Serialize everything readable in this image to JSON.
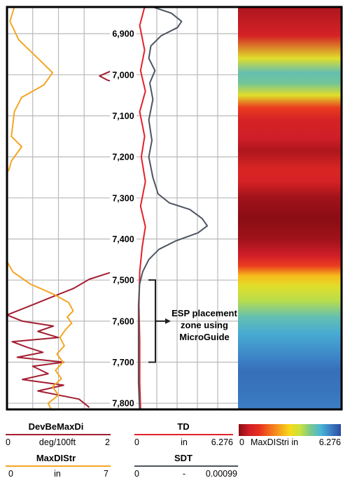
{
  "chart_data": {
    "type": "line",
    "depth_axis": {
      "ticks": [
        "6,900",
        "7,000",
        "7,100",
        "7,200",
        "7,300",
        "7,400",
        "7,500",
        "7,600",
        "7,700",
        "7,800"
      ],
      "tick_values": [
        6900,
        7000,
        7100,
        7200,
        7300,
        7400,
        7500,
        7600,
        7700,
        7800
      ],
      "range": [
        6835,
        7815
      ]
    },
    "annotation": {
      "lines": [
        "ESP placement",
        "zone using",
        "MicroGuide"
      ],
      "from": 7500,
      "to": 7700
    },
    "tracks": {
      "left": {
        "series": [
          {
            "name": "DevBeMaxDi",
            "unit": "deg/100ft",
            "min": "0",
            "max": "2",
            "lim": [
              0,
              2
            ],
            "color": "#a31e32",
            "points": [
              [
                2.0,
                6992
              ],
              [
                1.8,
                7003
              ],
              [
                1.95,
                7013
              ],
              [
                2.0,
                7015
              ]
            ],
            "points2": [
              [
                2.0,
                7482
              ],
              [
                1.6,
                7498
              ],
              [
                1.3,
                7520
              ],
              [
                0.9,
                7540
              ],
              [
                0.5,
                7560
              ],
              [
                0.0,
                7585
              ],
              [
                0.3,
                7600
              ],
              [
                0.9,
                7612
              ],
              [
                0.6,
                7625
              ],
              [
                1.0,
                7640
              ],
              [
                0.1,
                7650
              ],
              [
                0.4,
                7664
              ],
              [
                0.7,
                7676
              ],
              [
                0.2,
                7688
              ],
              [
                1.1,
                7700
              ],
              [
                0.5,
                7710
              ],
              [
                0.8,
                7728
              ],
              [
                0.3,
                7742
              ],
              [
                1.1,
                7756
              ],
              [
                0.6,
                7770
              ],
              [
                1.4,
                7790
              ],
              [
                1.6,
                7810
              ]
            ]
          },
          {
            "name": "MaxDIStr",
            "unit": "in",
            "min": "0",
            "max": "7",
            "lim": [
              0,
              7
            ],
            "color": "#f4a623",
            "points": [
              [
                0.5,
                6835
              ],
              [
                0.2,
                6870
              ],
              [
                0.8,
                6915
              ],
              [
                2.1,
                6960
              ],
              [
                3.1,
                6995
              ],
              [
                2.5,
                7025
              ],
              [
                1.0,
                7055
              ],
              [
                0.5,
                7090
              ],
              [
                0.3,
                7150
              ],
              [
                1.0,
                7175
              ],
              [
                0.7,
                7190
              ],
              [
                0.3,
                7210
              ],
              [
                0.1,
                7235
              ]
            ],
            "points2": [
              [
                0.0,
                7455
              ],
              [
                0.4,
                7480
              ],
              [
                1.6,
                7510
              ],
              [
                3.2,
                7535
              ],
              [
                4.2,
                7555
              ],
              [
                4.5,
                7575
              ],
              [
                4.1,
                7590
              ],
              [
                4.4,
                7605
              ],
              [
                4.0,
                7620
              ],
              [
                3.6,
                7640
              ],
              [
                3.9,
                7660
              ],
              [
                3.4,
                7680
              ],
              [
                3.8,
                7700
              ],
              [
                3.3,
                7720
              ],
              [
                3.7,
                7740
              ],
              [
                3.1,
                7760
              ],
              [
                3.5,
                7780
              ],
              [
                2.8,
                7800
              ],
              [
                3.0,
                7815
              ]
            ]
          }
        ]
      },
      "middle": {
        "series": [
          {
            "name": "TD",
            "unit": "in",
            "min": "0",
            "max": "6.276",
            "lim": [
              0,
              6.276
            ],
            "color": "#e2212a",
            "points": [
              [
                0.5,
                6835
              ],
              [
                0.2,
                6880
              ],
              [
                0.5,
                6940
              ],
              [
                0.25,
                6990
              ],
              [
                0.55,
                7040
              ],
              [
                0.2,
                7090
              ],
              [
                0.5,
                7150
              ],
              [
                0.3,
                7200
              ],
              [
                0.55,
                7260
              ],
              [
                0.25,
                7320
              ],
              [
                0.55,
                7370
              ],
              [
                0.35,
                7420
              ],
              [
                0.2,
                7480
              ],
              [
                0.15,
                7560
              ],
              [
                0.2,
                7650
              ],
              [
                0.2,
                7750
              ],
              [
                0.25,
                7815
              ]
            ]
          },
          {
            "name": "SDT",
            "unit": "-",
            "min": "0",
            "max": "0.00099",
            "lim": [
              0,
              0.00099
            ],
            "color": "#4d5560",
            "points": [
              [
                0.00016,
                6835
              ],
              [
                0.00034,
                6850
              ],
              [
                0.00044,
                6870
              ],
              [
                0.0004,
                6885
              ],
              [
                0.00024,
                6905
              ],
              [
                0.00014,
                6930
              ],
              [
                0.00012,
                6960
              ],
              [
                0.00018,
                6990
              ],
              [
                0.00013,
                7020
              ],
              [
                0.00016,
                7060
              ],
              [
                0.00012,
                7110
              ],
              [
                0.00015,
                7160
              ],
              [
                0.00012,
                7200
              ],
              [
                0.00016,
                7250
              ],
              [
                0.00021,
                7290
              ],
              [
                0.00032,
                7312
              ],
              [
                0.00052,
                7328
              ],
              [
                0.00064,
                7350
              ],
              [
                0.00069,
                7368
              ],
              [
                0.0006,
                7385
              ],
              [
                0.00038,
                7405
              ],
              [
                0.00022,
                7425
              ],
              [
                0.00012,
                7450
              ],
              [
                6e-05,
                7480
              ],
              [
                3e-05,
                7510
              ],
              [
                2e-05,
                7560
              ],
              [
                2e-05,
                7650
              ],
              [
                2e-05,
                7750
              ],
              [
                3e-05,
                7815
              ]
            ]
          }
        ]
      },
      "right": {
        "name": "MaxDIStri",
        "unit": "in",
        "min": "0",
        "max": "6.276",
        "colormap": [
          "#8b0d14",
          "#d01e28",
          "#e8301f",
          "#f26a1e",
          "#f6a11c",
          "#f7d91a",
          "#c8e23c",
          "#7cc88a",
          "#4bb6d6",
          "#3b7fc4",
          "#2e4aa0"
        ],
        "stops": [
          [
            6835,
            0.05
          ],
          [
            6905,
            0.12
          ],
          [
            6960,
            0.55
          ],
          [
            6995,
            0.75
          ],
          [
            7020,
            0.72
          ],
          [
            7050,
            0.55
          ],
          [
            7080,
            0.22
          ],
          [
            7110,
            0.12
          ],
          [
            7155,
            0.1
          ],
          [
            7185,
            0.05
          ],
          [
            7230,
            0.14
          ],
          [
            7260,
            0.12
          ],
          [
            7300,
            0.03
          ],
          [
            7350,
            0.0
          ],
          [
            7400,
            0.03
          ],
          [
            7440,
            0.1
          ],
          [
            7465,
            0.22
          ],
          [
            7490,
            0.45
          ],
          [
            7515,
            0.55
          ],
          [
            7550,
            0.62
          ],
          [
            7590,
            0.75
          ],
          [
            7630,
            0.82
          ],
          [
            7680,
            0.88
          ],
          [
            7720,
            0.93
          ],
          [
            7770,
            0.92
          ],
          [
            7815,
            0.9
          ]
        ]
      }
    }
  }
}
